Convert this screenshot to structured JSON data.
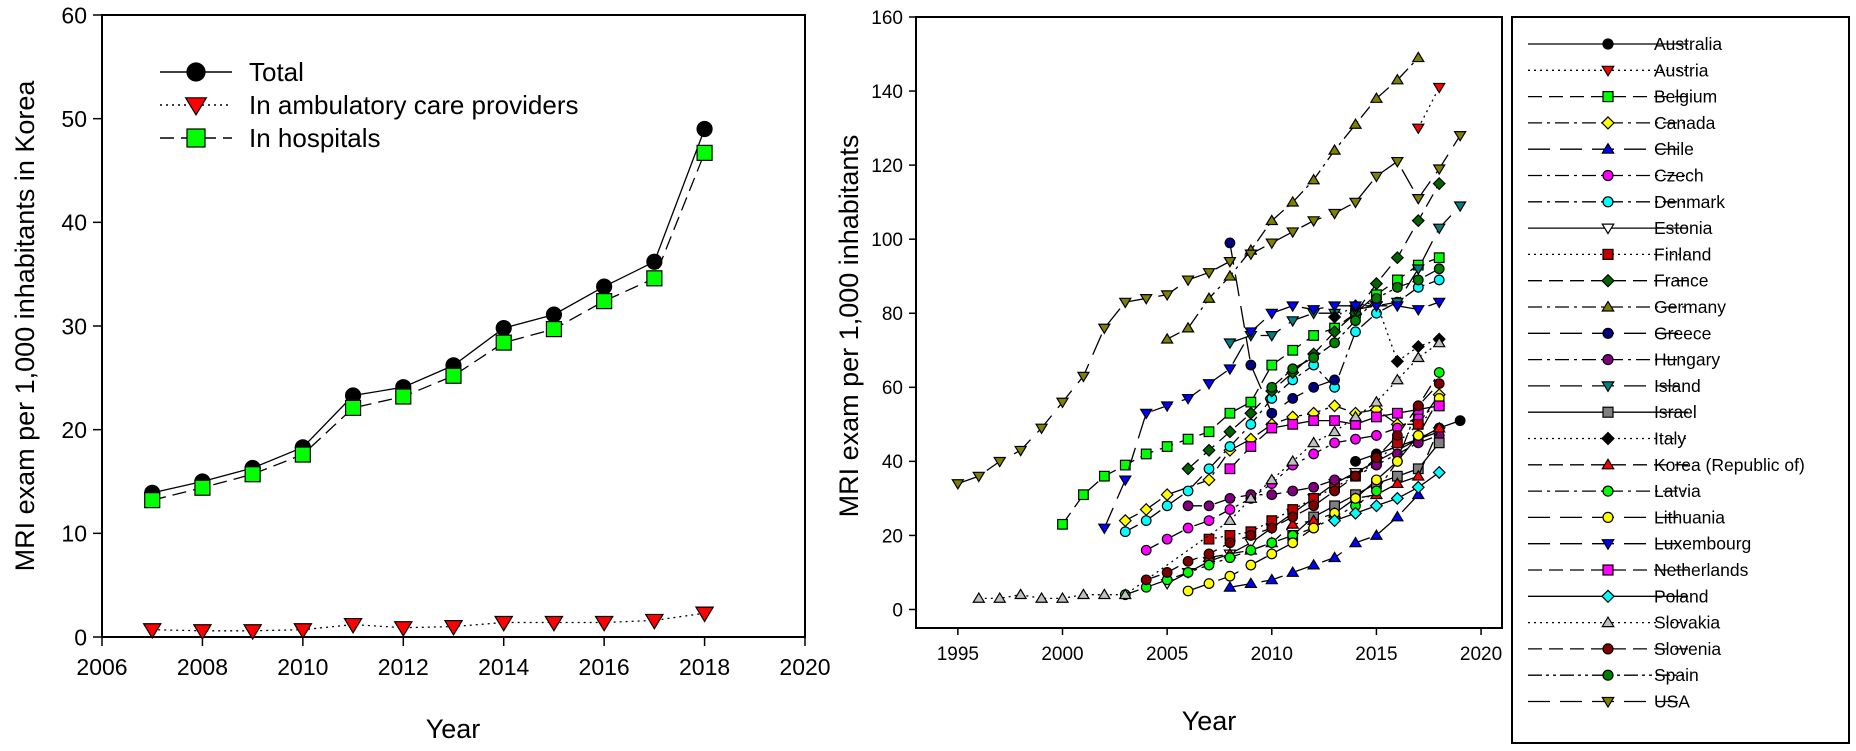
{
  "chart_data": [
    {
      "type": "line",
      "title": "",
      "xlabel": "Year",
      "ylabel": "MRI exam per 1,000 inhabitants in Korea",
      "xlim": [
        2006,
        2020
      ],
      "ylim": [
        0,
        60
      ],
      "xticks": [
        2006,
        2008,
        2010,
        2012,
        2014,
        2016,
        2018,
        2020
      ],
      "yticks": [
        0,
        10,
        20,
        30,
        40,
        50,
        60
      ],
      "legend_position": "top-left",
      "x": [
        2007,
        2008,
        2009,
        2010,
        2011,
        2012,
        2013,
        2014,
        2015,
        2016,
        2017,
        2018
      ],
      "series": [
        {
          "name": "Total",
          "marker": "circle",
          "color": "#000000",
          "line": "solid",
          "values": [
            13.9,
            15.0,
            16.3,
            18.3,
            23.3,
            24.1,
            26.2,
            29.8,
            31.1,
            33.8,
            36.2,
            49.0
          ]
        },
        {
          "name": "In ambulatory care providers",
          "marker": "triangle-down",
          "color": "#ff0000",
          "line": "dotted",
          "values": [
            0.7,
            0.6,
            0.6,
            0.7,
            1.2,
            0.9,
            1.0,
            1.4,
            1.4,
            1.4,
            1.6,
            2.3
          ]
        },
        {
          "name": "In hospitals",
          "marker": "square",
          "color": "#00ff00",
          "line": "dashed",
          "values": [
            13.2,
            14.4,
            15.7,
            17.6,
            22.1,
            23.2,
            25.2,
            28.4,
            29.7,
            32.4,
            34.6,
            46.7
          ]
        }
      ]
    },
    {
      "type": "line",
      "title": "",
      "xlabel": "Year",
      "ylabel": "MRI exam per 1,000 inhabitants",
      "xlim": [
        1993,
        2021
      ],
      "ylim": [
        -5,
        160
      ],
      "xticks": [
        1995,
        2000,
        2005,
        2010,
        2015,
        2020
      ],
      "yticks": [
        0,
        20,
        40,
        60,
        80,
        100,
        120,
        140,
        160
      ],
      "legend_position": "right",
      "series": [
        {
          "name": "Australia",
          "marker": "circle",
          "color": "#000000",
          "line": "solid",
          "x": [
            2014,
            2015,
            2016,
            2017,
            2018,
            2019
          ],
          "values": [
            40,
            42,
            44,
            46,
            49,
            51
          ]
        },
        {
          "name": "Austria",
          "marker": "triangle-down",
          "color": "#ff0000",
          "line": "dotted",
          "x": [
            2017,
            2018
          ],
          "values": [
            130,
            141
          ]
        },
        {
          "name": "Belgium",
          "marker": "square",
          "color": "#00ff00",
          "line": "dashed",
          "x": [
            2000,
            2001,
            2002,
            2003,
            2004,
            2005,
            2006,
            2007,
            2008,
            2009,
            2010,
            2011,
            2012,
            2013,
            2014,
            2015,
            2016,
            2017,
            2018
          ],
          "values": [
            23,
            31,
            36,
            39,
            42,
            44,
            46,
            48,
            53,
            56,
            66,
            70,
            74,
            76,
            80,
            85,
            89,
            93,
            95
          ]
        },
        {
          "name": "Canada",
          "marker": "diamond",
          "color": "#ffff00",
          "line": "dashdot",
          "x": [
            2003,
            2004,
            2005,
            2007,
            2008,
            2009,
            2010,
            2011,
            2012,
            2013,
            2014,
            2015,
            2016,
            2017,
            2018
          ],
          "values": [
            24,
            27,
            31,
            35,
            43,
            46,
            50,
            52,
            53,
            55,
            53,
            54,
            50,
            50,
            58
          ]
        },
        {
          "name": "Chile",
          "marker": "triangle-up",
          "color": "#0000ff",
          "line": "longdash",
          "x": [
            2008,
            2009,
            2010,
            2011,
            2012,
            2013,
            2014,
            2015,
            2016,
            2017
          ],
          "values": [
            6,
            7,
            8,
            10,
            12,
            14,
            18,
            20,
            25,
            31
          ]
        },
        {
          "name": "Czech",
          "marker": "circle",
          "color": "#ff00ff",
          "line": "dashdot",
          "x": [
            2004,
            2005,
            2006,
            2007,
            2008,
            2009,
            2010,
            2011,
            2012,
            2013,
            2014,
            2015,
            2016,
            2017,
            2018
          ],
          "values": [
            16,
            19,
            22,
            24,
            27,
            30,
            34,
            39,
            42,
            45,
            46,
            47,
            49,
            52,
            55
          ]
        },
        {
          "name": "Denmark",
          "marker": "circle",
          "color": "#00ffff",
          "line": "dashdot",
          "x": [
            2003,
            2004,
            2005,
            2006,
            2007,
            2008,
            2009,
            2010,
            2011,
            2012,
            2013,
            2014,
            2015,
            2016,
            2017,
            2018
          ],
          "values": [
            21,
            24,
            28,
            32,
            38,
            44,
            50,
            57,
            62,
            66,
            60,
            75,
            80,
            83,
            87,
            89
          ]
        },
        {
          "name": "Estonia",
          "marker": "triangle-down",
          "color": "#ffffff",
          "line": "solid",
          "x": [
            2005,
            2006,
            2007,
            2008,
            2009,
            2010,
            2011,
            2012,
            2013,
            2014,
            2015,
            2016,
            2017,
            2018
          ],
          "values": [
            7,
            10,
            13,
            15,
            18,
            22,
            26,
            30,
            34,
            37,
            40,
            43,
            46,
            48
          ]
        },
        {
          "name": "Finland",
          "marker": "square",
          "color": "#c00000",
          "line": "dotted",
          "x": [
            2007,
            2008,
            2009,
            2010,
            2011,
            2012,
            2013,
            2014,
            2015,
            2016,
            2017,
            2018
          ],
          "values": [
            19,
            20,
            21,
            24,
            27,
            30,
            33,
            36,
            40,
            45,
            50,
            55
          ]
        },
        {
          "name": "France",
          "marker": "diamond",
          "color": "#006400",
          "line": "dashed",
          "x": [
            2006,
            2007,
            2008,
            2009,
            2010,
            2011,
            2012,
            2013,
            2014,
            2015,
            2016,
            2017,
            2018
          ],
          "values": [
            38,
            43,
            48,
            53,
            59,
            64,
            69,
            75,
            80,
            88,
            95,
            105,
            115
          ]
        },
        {
          "name": "Germany",
          "marker": "triangle-up",
          "color": "#808000",
          "line": "dashdot",
          "x": [
            2005,
            2006,
            2007,
            2008,
            2009,
            2010,
            2011,
            2012,
            2013,
            2014,
            2015,
            2016,
            2017
          ],
          "values": [
            73,
            76,
            84,
            90,
            97,
            105,
            110,
            116,
            124,
            131,
            138,
            143,
            149
          ]
        },
        {
          "name": "Greece",
          "marker": "circle",
          "color": "#000080",
          "line": "longdash",
          "x": [
            2008,
            2009,
            2010,
            2011,
            2012,
            2013
          ],
          "values": [
            99,
            66,
            53,
            57,
            60,
            62
          ]
        },
        {
          "name": "Hungary",
          "marker": "circle",
          "color": "#800080",
          "line": "dashdot",
          "x": [
            2006,
            2007,
            2008,
            2009,
            2010,
            2011,
            2012,
            2013,
            2014,
            2015,
            2016,
            2017,
            2018
          ],
          "values": [
            28,
            28,
            30,
            31,
            31,
            32,
            33,
            35,
            36,
            39,
            42,
            45,
            47
          ]
        },
        {
          "name": "Island",
          "marker": "triangle-down",
          "color": "#008080",
          "line": "longdash",
          "x": [
            2008,
            2009,
            2010,
            2011,
            2012,
            2013,
            2014,
            2015,
            2016,
            2017,
            2018,
            2019
          ],
          "values": [
            72,
            74,
            74,
            78,
            80,
            80,
            81,
            82,
            83,
            92,
            103,
            109
          ]
        },
        {
          "name": "Israel",
          "marker": "square",
          "color": "#808080",
          "line": "solid",
          "x": [
            2011,
            2012,
            2013,
            2014,
            2015,
            2016,
            2017,
            2018
          ],
          "values": [
            20,
            25,
            28,
            31,
            34,
            36,
            38,
            45
          ]
        },
        {
          "name": "Italy",
          "marker": "diamond",
          "color": "#000000",
          "line": "dotted",
          "x": [
            2013,
            2014,
            2015,
            2016,
            2017,
            2018
          ],
          "values": [
            79,
            82,
            83,
            67,
            71,
            73
          ]
        },
        {
          "name": "Korea (Republic of)",
          "marker": "triangle-up",
          "color": "#ff0000",
          "line": "dashed",
          "x": [
            2007,
            2008,
            2009,
            2010,
            2011,
            2012,
            2013,
            2014,
            2015,
            2016,
            2017,
            2018
          ],
          "values": [
            14,
            15,
            16,
            18,
            23,
            24,
            26,
            30,
            31,
            34,
            36,
            49
          ]
        },
        {
          "name": "Latvia",
          "marker": "circle",
          "color": "#00ff00",
          "line": "dashdot",
          "x": [
            2003,
            2004,
            2005,
            2006,
            2007,
            2008,
            2009,
            2010,
            2011,
            2012,
            2013,
            2014,
            2015,
            2016,
            2017,
            2018
          ],
          "values": [
            4,
            6,
            8,
            10,
            12,
            14,
            16,
            18,
            20,
            22,
            25,
            28,
            32,
            40,
            55,
            64
          ]
        },
        {
          "name": "Lithuania",
          "marker": "circle",
          "color": "#ffff00",
          "line": "longdash",
          "x": [
            2006,
            2007,
            2008,
            2009,
            2010,
            2011,
            2012,
            2013,
            2014,
            2015,
            2016,
            2017,
            2018
          ],
          "values": [
            5,
            7,
            9,
            12,
            15,
            18,
            22,
            26,
            30,
            35,
            40,
            47,
            57
          ]
        },
        {
          "name": "Luxembourg",
          "marker": "triangle-down",
          "color": "#0000ff",
          "line": "longdash",
          "x": [
            2002,
            2003,
            2004,
            2005,
            2006,
            2007,
            2008,
            2009,
            2010,
            2011,
            2012,
            2013,
            2014,
            2015,
            2016,
            2017,
            2018
          ],
          "values": [
            22,
            35,
            53,
            55,
            57,
            61,
            65,
            75,
            80,
            82,
            81,
            82,
            82,
            82,
            82,
            81,
            83
          ]
        },
        {
          "name": "Netherlands",
          "marker": "square",
          "color": "#ff00ff",
          "line": "dashed",
          "x": [
            2008,
            2009,
            2010,
            2011,
            2012,
            2013,
            2014,
            2015,
            2016,
            2017,
            2018
          ],
          "values": [
            38,
            44,
            49,
            50,
            51,
            51,
            50,
            52,
            53,
            54,
            55
          ]
        },
        {
          "name": "Poland",
          "marker": "diamond",
          "color": "#00ffff",
          "line": "solid",
          "x": [
            2013,
            2014,
            2015,
            2016,
            2017,
            2018
          ],
          "values": [
            24,
            26,
            28,
            30,
            33,
            37
          ]
        },
        {
          "name": "Slovakia",
          "marker": "triangle-up",
          "color": "#c0c0c0",
          "line": "dotted",
          "x": [
            1996,
            1997,
            1998,
            1999,
            2000,
            2001,
            2002,
            2003,
            2008,
            2009,
            2010,
            2011,
            2012,
            2013,
            2014,
            2015,
            2016,
            2017,
            2018
          ],
          "values": [
            3,
            3,
            4,
            3,
            3,
            4,
            4,
            4,
            24,
            30,
            35,
            40,
            45,
            48,
            52,
            56,
            62,
            68,
            72
          ]
        },
        {
          "name": "Slovenia",
          "marker": "circle",
          "color": "#800000",
          "line": "dashed",
          "x": [
            2004,
            2005,
            2006,
            2007,
            2008,
            2009,
            2010,
            2011,
            2012,
            2013,
            2014,
            2015,
            2016,
            2017,
            2018
          ],
          "values": [
            8,
            10,
            13,
            15,
            18,
            20,
            22,
            25,
            28,
            32,
            36,
            41,
            47,
            55,
            61
          ]
        },
        {
          "name": "Spain",
          "marker": "circle",
          "color": "#008000",
          "line": "dashdotdot",
          "x": [
            2010,
            2011,
            2012,
            2013,
            2014,
            2015,
            2016,
            2017,
            2018
          ],
          "values": [
            60,
            65,
            68,
            72,
            78,
            84,
            87,
            89,
            92
          ]
        },
        {
          "name": "USA",
          "marker": "triangle-down",
          "color": "#808000",
          "line": "longdash",
          "x": [
            1995,
            1996,
            1997,
            1998,
            1999,
            2000,
            2001,
            2002,
            2003,
            2004,
            2005,
            2006,
            2007,
            2008,
            2009,
            2010,
            2011,
            2012,
            2013,
            2014,
            2015,
            2016,
            2017,
            2018,
            2019
          ],
          "values": [
            34,
            36,
            40,
            43,
            49,
            56,
            63,
            76,
            83,
            84,
            85,
            89,
            91,
            94,
            96,
            99,
            102,
            105,
            107,
            110,
            117,
            121,
            111,
            119,
            128
          ]
        }
      ]
    }
  ]
}
